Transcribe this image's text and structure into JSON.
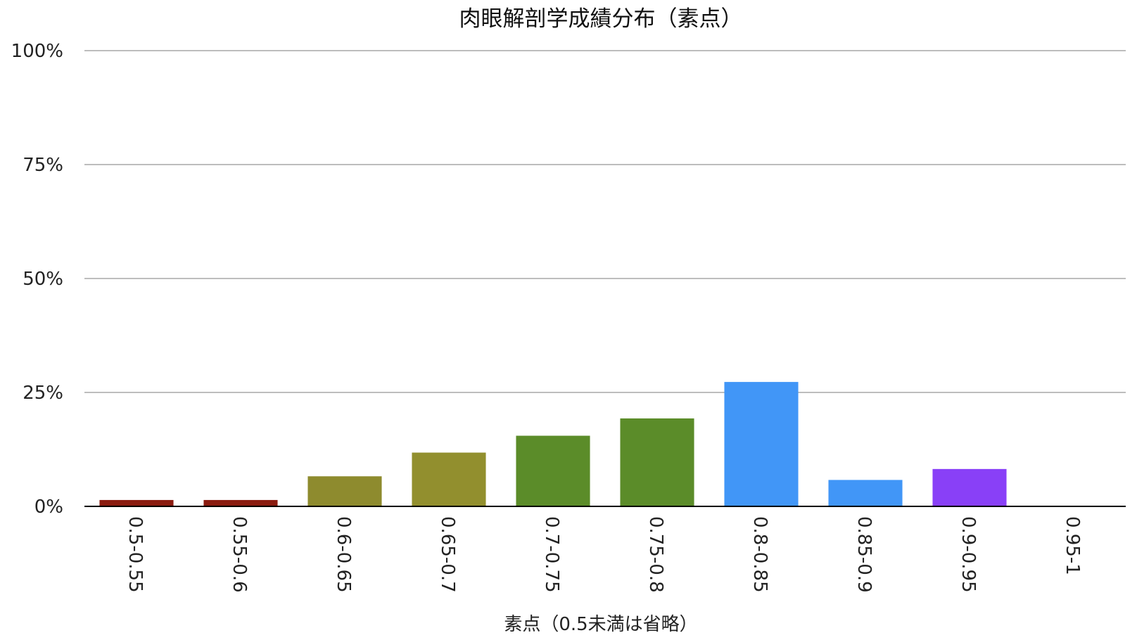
{
  "chart_data": {
    "type": "bar",
    "title": "肉眼解剖学成績分布（素点）",
    "xlabel": "素点（0.5未満は省略）",
    "ylabel": "",
    "ylim": [
      0,
      100
    ],
    "yticks": [
      0,
      25,
      50,
      75,
      100
    ],
    "ytick_labels": [
      "0%",
      "25%",
      "50%",
      "75%",
      "100%"
    ],
    "grid": true,
    "legend": "none",
    "categories": [
      "0.5-0.55",
      "0.55-0.6",
      "0.6-0.65",
      "0.65-0.7",
      "0.7-0.75",
      "0.75-0.8",
      "0.8-0.85",
      "0.85-0.9",
      "0.9-0.95",
      "0.95-1"
    ],
    "values": [
      1.4,
      1.4,
      6.6,
      11.8,
      15.5,
      19.3,
      27.3,
      5.8,
      8.2,
      0
    ],
    "colors": [
      "#8b1c10",
      "#8b1c10",
      "#8e8b2e",
      "#928f2e",
      "#5b8c29",
      "#5b8c29",
      "#4196f7",
      "#4196f7",
      "#8940f7",
      "#8940f7"
    ]
  }
}
